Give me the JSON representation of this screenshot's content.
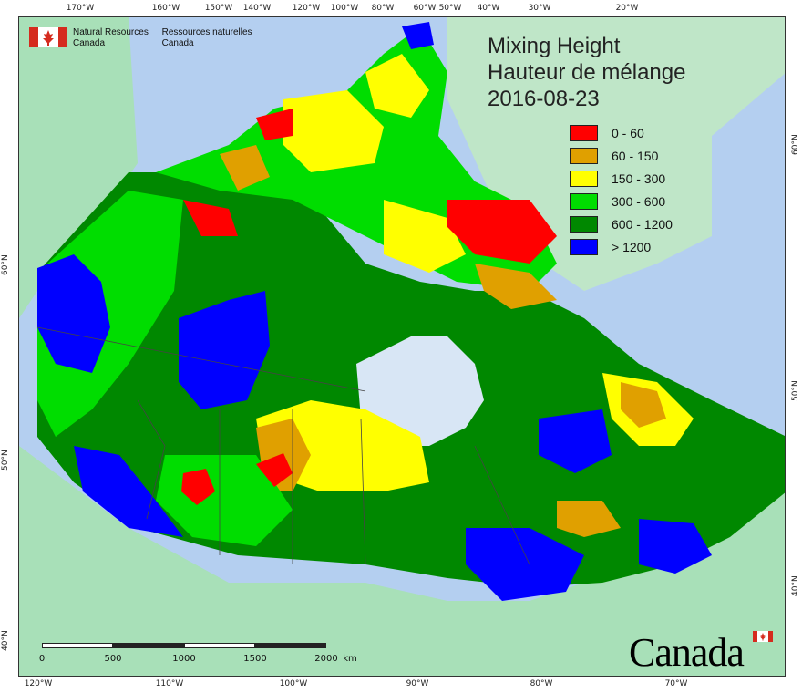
{
  "agency": {
    "name_en_line1": "Natural Resources",
    "name_en_line2": "Canada",
    "name_fr_line1": "Ressources naturelles",
    "name_fr_line2": "Canada"
  },
  "title": {
    "line1": "Mixing Height",
    "line2": "Hauteur de mélange",
    "date": "2016-08-23"
  },
  "legend": [
    {
      "label": "0 - 60",
      "color": "#ff0000"
    },
    {
      "label": "60 - 150",
      "color": "#e0a000"
    },
    {
      "label": "150 - 300",
      "color": "#ffff00"
    },
    {
      "label": "300 - 600",
      "color": "#00dd00"
    },
    {
      "label": "600 - 1200",
      "color": "#008800"
    },
    {
      "label": "> 1200",
      "color": "#0000ff"
    }
  ],
  "graticule": {
    "top": [
      "170°W",
      "160°W",
      "150°W",
      "140°W",
      "120°W",
      "100°W",
      "80°W",
      "60°W",
      "50°W",
      "40°W",
      "30°W",
      "20°W"
    ],
    "bottom": [
      "120°W",
      "110°W",
      "100°W",
      "90°W",
      "80°W",
      "70°W"
    ],
    "left": [
      "60°N",
      "50°N",
      "40°N"
    ],
    "right": [
      "60°N",
      "50°N",
      "40°N"
    ]
  },
  "scale": {
    "labels": [
      "0",
      "500",
      "1000",
      "1500",
      "2000"
    ],
    "unit": "km"
  },
  "wordmark": "Canada",
  "colors": {
    "ocean": "#b4cff0",
    "land_outside": "#a8e0b8",
    "greenland": "#bfe6c8",
    "water_inland": "#d8e6f5",
    "boundary": "#444444"
  }
}
